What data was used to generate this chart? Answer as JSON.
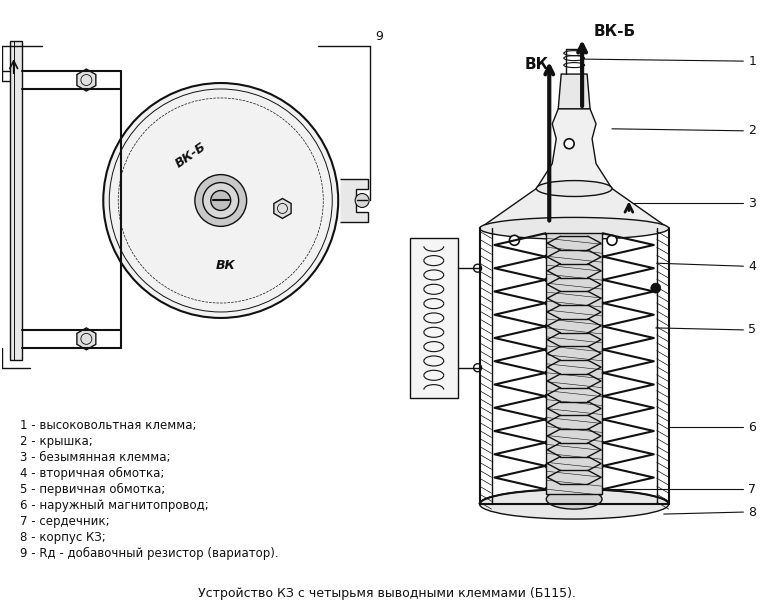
{
  "title": "Устройство КЗ с четырьмя выводными клеммами (Б115).",
  "legend_items": [
    "1 - высоковольтная клемма;",
    "2 - крышка;",
    "3 - безымянная клемма;",
    "4 - вторичная обмотка;",
    "5 - первичная обмотка;",
    "6 - наружный магнитопровод;",
    "7 - сердечник;",
    "8 - корпус КЗ;",
    "9 - Rд - добавочный резистор (вариатор)."
  ],
  "label_vkb": "ВК-Б",
  "label_vk": "ВК",
  "bg_color": "#ffffff",
  "line_color": "#111111",
  "text_color": "#111111",
  "font_size_legend": 8.5,
  "font_size_title": 9
}
